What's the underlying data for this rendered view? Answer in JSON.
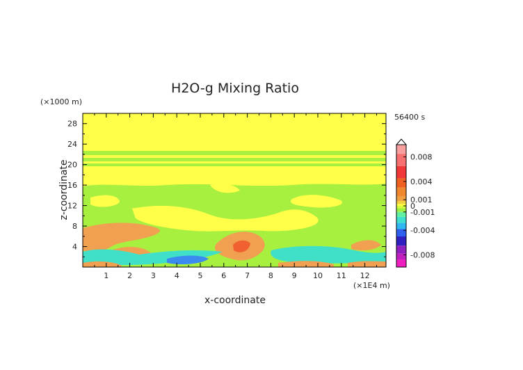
{
  "chart_data": {
    "type": "heatmap",
    "title": "H2O-g Mixing Ratio",
    "xlabel": "x-coordinate",
    "ylabel": "z-coordinate",
    "x_unit": "(×1E4 m)",
    "y_unit": "(×1000 m)",
    "time_label": "56400 s",
    "xlim": [
      0,
      12.9
    ],
    "ylim": [
      0,
      30
    ],
    "x_ticks": [
      "1",
      "2",
      "3",
      "4",
      "5",
      "6",
      "7",
      "8",
      "9",
      "10",
      "11",
      "12"
    ],
    "y_ticks": [
      "4",
      "8",
      "12",
      "16",
      "20",
      "24",
      "28"
    ],
    "colorbar": {
      "range": [
        -0.01,
        0.01
      ],
      "tick_labels": [
        "0.008",
        "0.004",
        "0.001",
        "0",
        "-0.001",
        "-0.004",
        "-0.008"
      ],
      "tick_values": [
        0.008,
        0.004,
        0.001,
        0,
        -0.001,
        -0.004,
        -0.008
      ],
      "colors": {
        "pink": "#f8a0a0",
        "red": "#f03838",
        "orange_red": "#f06020",
        "orange": "#f0a040",
        "yellow": "#ffff40",
        "light_green": "#a0f040",
        "cyan": "#40e0d0",
        "blue": "#3060f0",
        "dark_blue": "#3020c0",
        "purple": "#9020c0",
        "magenta": "#f020c0"
      }
    },
    "field_colors": {
      "background": "#ffff4a",
      "green_band": "#a8f040",
      "orange": "#f0a050",
      "red": "#f06030",
      "cyan": "#40e0c8",
      "blue": "#3a8af0"
    }
  }
}
